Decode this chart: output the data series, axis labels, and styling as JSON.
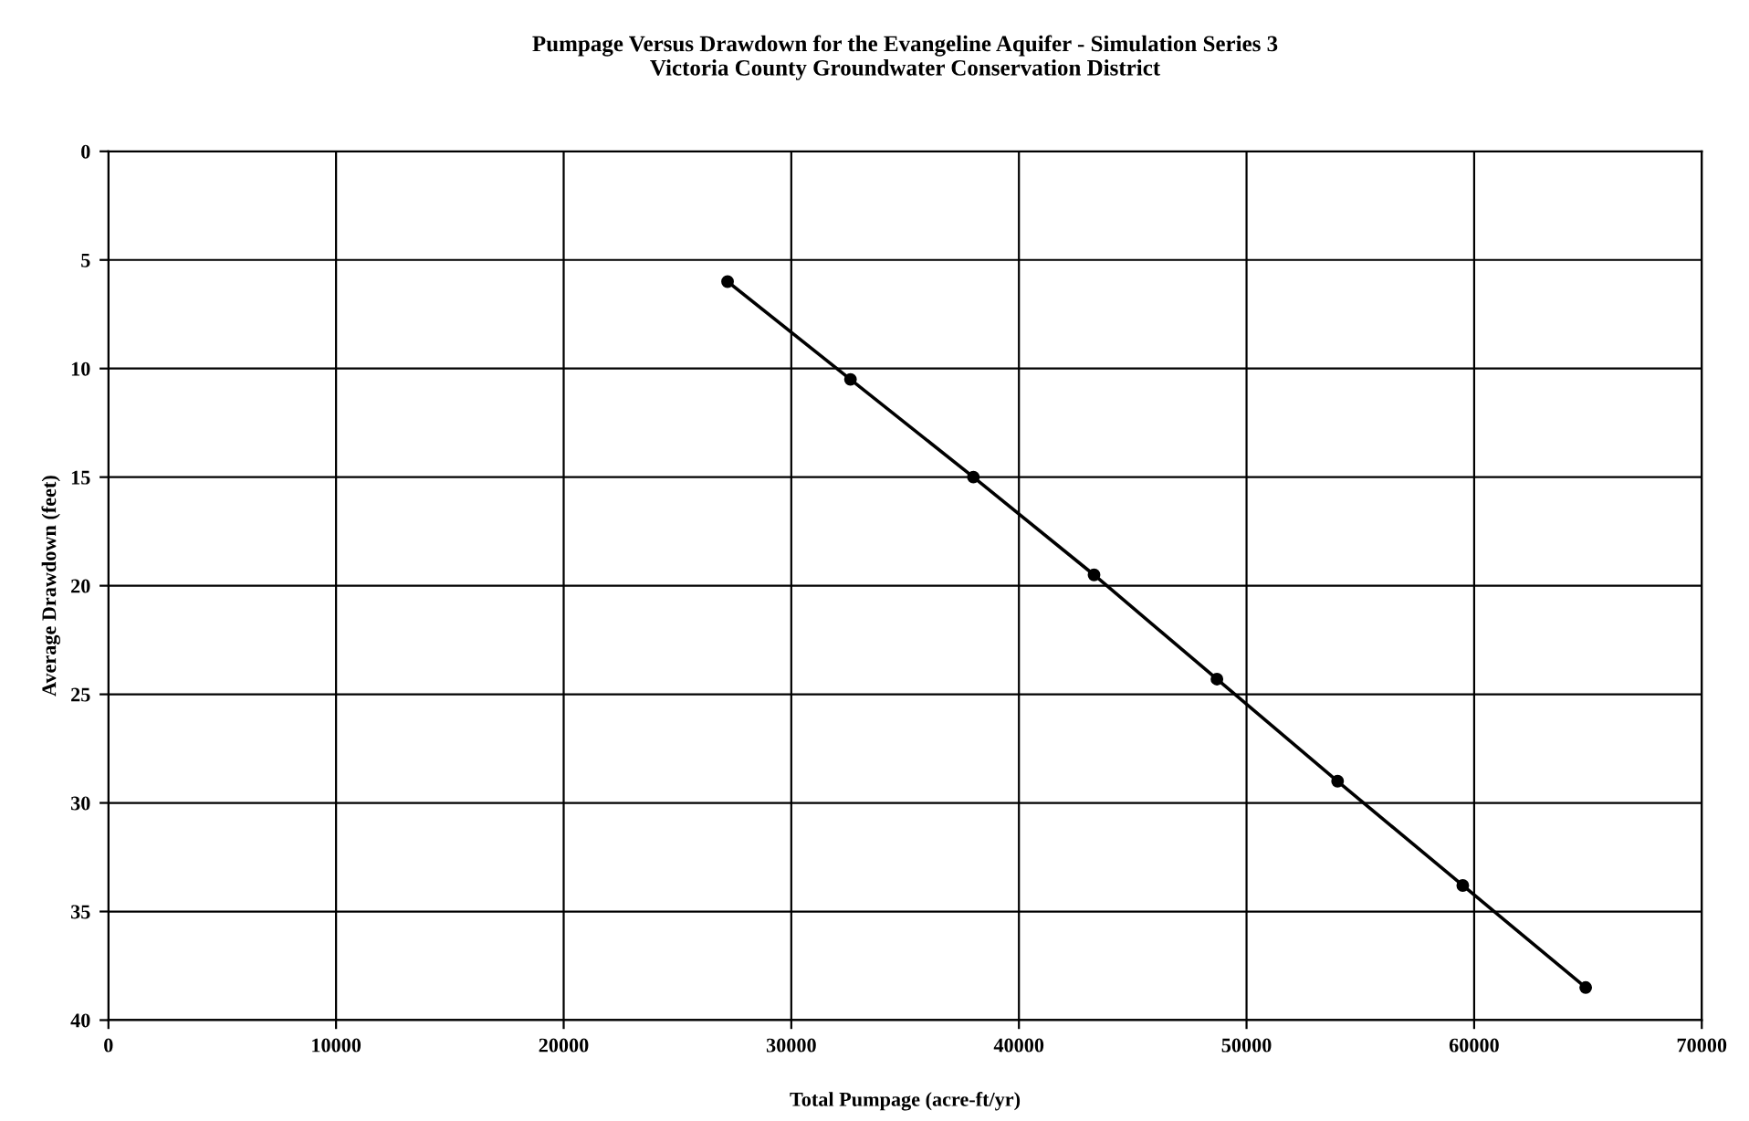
{
  "chart_data": {
    "type": "line",
    "title": "Pumpage Versus Drawdown for the Evangeline Aquifer - Simulation Series 3\nVictoria County Groundwater Conservation District",
    "xlabel": "Total Pumpage (acre-ft/yr)",
    "ylabel": "Average Drawdown (feet)",
    "x": [
      27200,
      32600,
      38000,
      43300,
      48700,
      54000,
      59500,
      64900
    ],
    "series": [
      {
        "color": "#000000",
        "values": [
          6.0,
          10.5,
          15.0,
          19.5,
          24.3,
          29.0,
          33.8,
          38.5
        ]
      }
    ],
    "xlim": [
      0,
      70000
    ],
    "xticks": [
      0,
      10000,
      20000,
      30000,
      40000,
      50000,
      60000,
      70000
    ],
    "ylim": [
      40,
      0
    ],
    "yticks": [
      0,
      5,
      10,
      15,
      20,
      25,
      30,
      35,
      40
    ],
    "grid": true,
    "marker": "circle",
    "line_style": "solid"
  }
}
